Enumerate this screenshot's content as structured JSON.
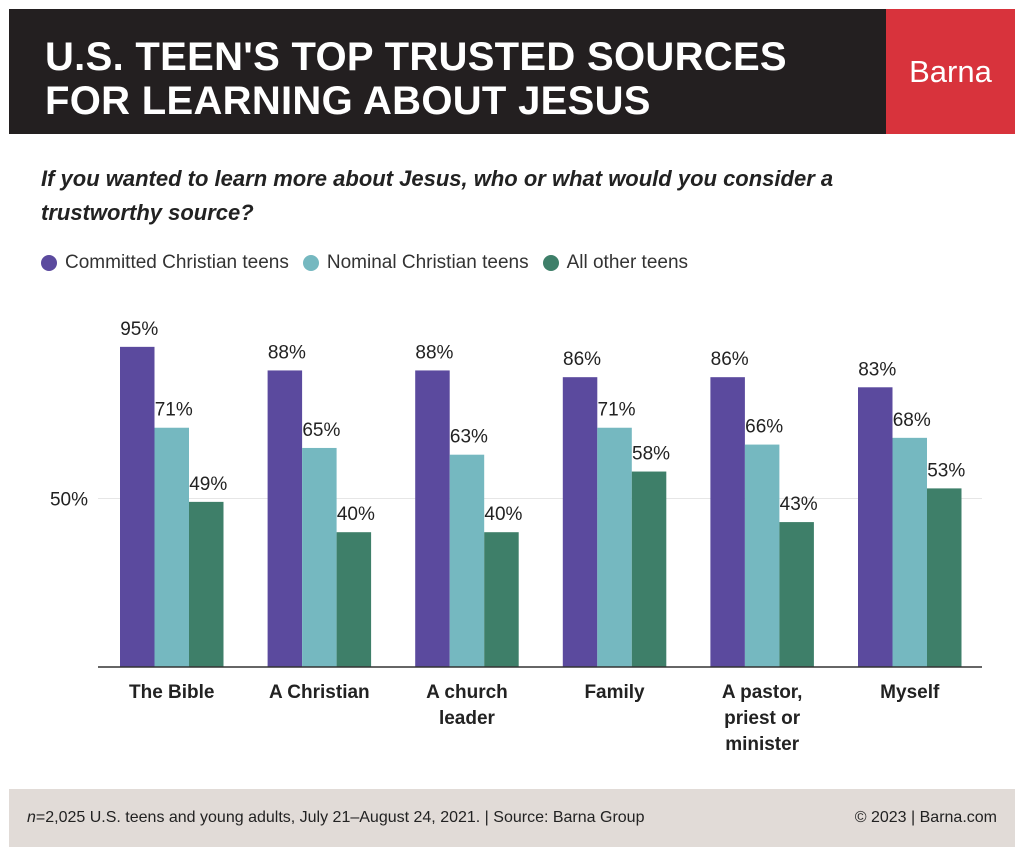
{
  "header": {
    "title_line_1": "U.S. TEEN'S TOP TRUSTED SOURCES",
    "title_line_2": "FOR LEARNING ABOUT JESUS",
    "brand": "Barna"
  },
  "question": "If you wanted to learn more about Jesus, who or what would you consider a trustworthy source?",
  "footer": {
    "n_prefix": "n",
    "note": "=2,025 U.S. teens and young adults, July 21–August 24, 2021. | Source: Barna Group",
    "copyright": "© 2023 | Barna.com"
  },
  "chart_data": {
    "type": "bar",
    "title": "U.S. TEEN'S TOP TRUSTED SOURCES FOR LEARNING ABOUT JESUS",
    "categories": [
      [
        "The Bible"
      ],
      [
        "A Christian"
      ],
      [
        "A church",
        "leader"
      ],
      [
        "Family"
      ],
      [
        "A pastor,",
        "priest or",
        "minister"
      ],
      [
        "Myself"
      ]
    ],
    "series": [
      {
        "name": "Committed Christian teens",
        "color": "#5b4a9e",
        "values": [
          95,
          88,
          88,
          86,
          86,
          83
        ]
      },
      {
        "name": "Nominal Christian teens",
        "color": "#75b8c0",
        "values": [
          71,
          65,
          63,
          71,
          66,
          68
        ]
      },
      {
        "name": "All other teens",
        "color": "#3e7f69",
        "values": [
          49,
          40,
          40,
          58,
          43,
          53
        ]
      }
    ],
    "ylim": [
      0,
      100
    ],
    "y_ticks": [
      {
        "value": 50,
        "label": "50%"
      }
    ],
    "value_suffix": "%",
    "grid": true,
    "legend": "top-left"
  }
}
